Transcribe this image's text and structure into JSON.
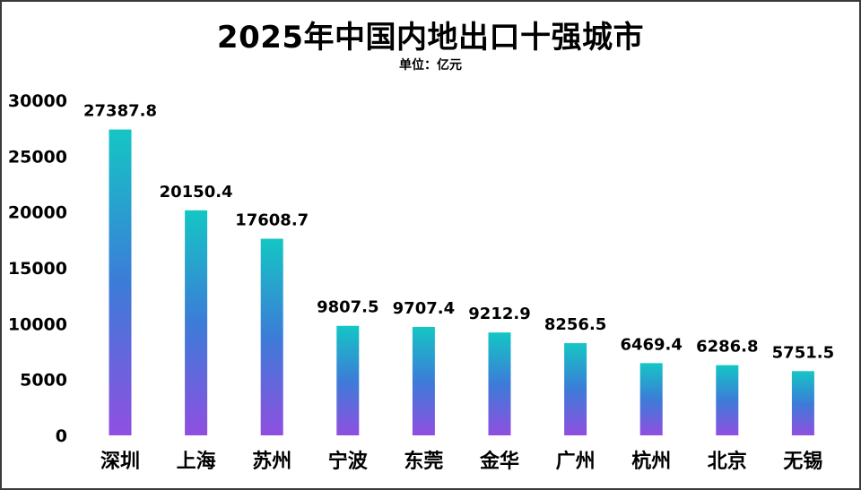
{
  "chart_data": {
    "type": "bar",
    "title": "2025年中国内地出口十强城市",
    "subtitle": "单位：亿元",
    "xlabel": "",
    "ylabel": "",
    "ylim": [
      0,
      30000
    ],
    "yticks": [
      "0",
      "5000",
      "10000",
      "15000",
      "20000",
      "25000",
      "30000"
    ],
    "categories": [
      "深圳",
      "上海",
      "苏州",
      "宁波",
      "东莞",
      "金华",
      "广州",
      "杭州",
      "北京",
      "无锡"
    ],
    "values": [
      27387.8,
      20150.4,
      17608.7,
      9807.5,
      9707.4,
      9212.9,
      8256.5,
      6469.4,
      6286.8,
      5751.5
    ],
    "value_labels": [
      "27387.8",
      "20150.4",
      "17608.7",
      "9807.5",
      "9707.4",
      "9212.9",
      "8256.5",
      "6469.4",
      "6286.8",
      "5751.5"
    ],
    "grid": false,
    "legend": "none",
    "colors": {
      "bar_top": "#14c6c4",
      "bar_mid": "#3c7cd8",
      "bar_bottom": "#8f4fe0",
      "frame": "#3a3a3a"
    }
  }
}
